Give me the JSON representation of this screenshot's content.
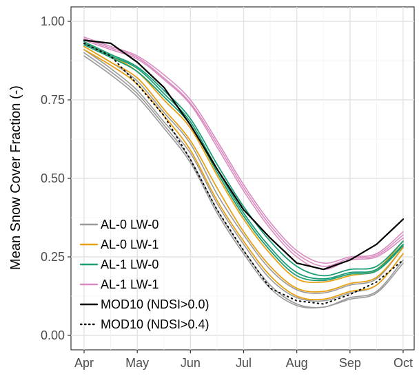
{
  "chart_data": {
    "type": "line",
    "title": "",
    "xlabel": "",
    "ylabel": "Mean Snow Cover Fraction (-)",
    "x_ticks": [
      "Apr",
      "May",
      "Jun",
      "Jul",
      "Aug",
      "Sep",
      "Oct"
    ],
    "y_ticks": [
      "0.00",
      "0.25",
      "0.50",
      "0.75",
      "1.00"
    ],
    "xlim": [
      "Apr",
      "Oct"
    ],
    "ylim": [
      0,
      1.0
    ],
    "grid": true,
    "legend_position": "bottom-left",
    "legend": [
      {
        "label": "AL-0 LW-0",
        "color": "#9a9a9a",
        "dash": "solid"
      },
      {
        "label": "AL-0 LW-1",
        "color": "#e6a117",
        "dash": "solid"
      },
      {
        "label": "AL-1 LW-0",
        "color": "#1b9e77",
        "dash": "solid"
      },
      {
        "label": "AL-1 LW-1",
        "color": "#d98cc0",
        "dash": "solid"
      },
      {
        "label": "MOD10 (NDSI>0.0)",
        "color": "#000000",
        "dash": "solid"
      },
      {
        "label": "MOD10 (NDSI>0.4)",
        "color": "#000000",
        "dash": "dotted"
      }
    ],
    "x": [
      "Apr",
      "Apr 15",
      "May",
      "May 15",
      "Jun",
      "Jun 15",
      "Jul",
      "Jul 15",
      "Aug",
      "Aug 15",
      "Sep",
      "Sep 15",
      "Oct"
    ],
    "series": [
      {
        "name": "AL-0 LW-0",
        "color": "#9a9a9a",
        "dash": "solid",
        "width": 1.6,
        "values": [
          0.9,
          0.84,
          0.77,
          0.67,
          0.56,
          0.4,
          0.27,
          0.16,
          0.1,
          0.09,
          0.12,
          0.14,
          0.24
        ]
      },
      {
        "name": "AL-0 LW-0",
        "color": "#9a9a9a",
        "dash": "solid",
        "width": 1.6,
        "values": [
          0.89,
          0.83,
          0.76,
          0.66,
          0.55,
          0.39,
          0.26,
          0.15,
          0.095,
          0.09,
          0.115,
          0.135,
          0.23
        ]
      },
      {
        "name": "AL-0 LW-0",
        "color": "#9a9a9a",
        "dash": "solid",
        "width": 1.6,
        "values": [
          0.91,
          0.85,
          0.78,
          0.68,
          0.58,
          0.42,
          0.29,
          0.18,
          0.12,
          0.11,
          0.135,
          0.16,
          0.26
        ]
      },
      {
        "name": "AL-0 LW-0",
        "color": "#9a9a9a",
        "dash": "solid",
        "width": 1.6,
        "values": [
          0.92,
          0.87,
          0.81,
          0.71,
          0.61,
          0.45,
          0.32,
          0.21,
          0.145,
          0.135,
          0.16,
          0.18,
          0.28
        ]
      },
      {
        "name": "AL-0 LW-1",
        "color": "#e6a117",
        "dash": "solid",
        "width": 1.8,
        "values": [
          0.91,
          0.86,
          0.8,
          0.7,
          0.59,
          0.43,
          0.3,
          0.19,
          0.125,
          0.115,
          0.14,
          0.16,
          0.26
        ]
      },
      {
        "name": "AL-0 LW-1",
        "color": "#e6a117",
        "dash": "solid",
        "width": 1.8,
        "values": [
          0.92,
          0.87,
          0.82,
          0.72,
          0.62,
          0.47,
          0.33,
          0.22,
          0.15,
          0.14,
          0.165,
          0.185,
          0.28
        ]
      },
      {
        "name": "AL-0 LW-1",
        "color": "#e6a117",
        "dash": "solid",
        "width": 1.8,
        "values": [
          0.93,
          0.89,
          0.84,
          0.75,
          0.66,
          0.51,
          0.37,
          0.26,
          0.18,
          0.17,
          0.19,
          0.21,
          0.3
        ]
      },
      {
        "name": "AL-1 LW-0",
        "color": "#1b9e77",
        "dash": "solid",
        "width": 1.8,
        "values": [
          0.93,
          0.89,
          0.85,
          0.77,
          0.68,
          0.53,
          0.39,
          0.28,
          0.2,
          0.18,
          0.2,
          0.21,
          0.29
        ]
      },
      {
        "name": "AL-1 LW-0",
        "color": "#1b9e77",
        "dash": "solid",
        "width": 1.8,
        "values": [
          0.925,
          0.885,
          0.84,
          0.76,
          0.67,
          0.52,
          0.38,
          0.27,
          0.19,
          0.175,
          0.195,
          0.205,
          0.285
        ]
      },
      {
        "name": "AL-1 LW-0",
        "color": "#1b9e77",
        "dash": "solid",
        "width": 1.8,
        "values": [
          0.935,
          0.895,
          0.855,
          0.78,
          0.69,
          0.545,
          0.41,
          0.3,
          0.22,
          0.19,
          0.21,
          0.22,
          0.3
        ]
      },
      {
        "name": "AL-1 LW-1",
        "color": "#d98cc0",
        "dash": "solid",
        "width": 1.6,
        "values": [
          0.95,
          0.92,
          0.89,
          0.83,
          0.75,
          0.62,
          0.48,
          0.36,
          0.27,
          0.23,
          0.25,
          0.26,
          0.33
        ]
      },
      {
        "name": "AL-1 LW-1",
        "color": "#d98cc0",
        "dash": "solid",
        "width": 1.6,
        "values": [
          0.945,
          0.915,
          0.885,
          0.82,
          0.74,
          0.61,
          0.47,
          0.35,
          0.26,
          0.22,
          0.245,
          0.255,
          0.32
        ]
      },
      {
        "name": "AL-1 LW-1",
        "color": "#d98cc0",
        "dash": "solid",
        "width": 1.6,
        "values": [
          0.94,
          0.91,
          0.88,
          0.815,
          0.735,
          0.6,
          0.46,
          0.34,
          0.25,
          0.21,
          0.24,
          0.25,
          0.31
        ]
      },
      {
        "name": "MOD10 (NDSI>0.0)",
        "color": "#000000",
        "dash": "solid",
        "width": 2.2,
        "values": [
          0.94,
          0.93,
          0.87,
          0.79,
          0.67,
          0.53,
          0.4,
          0.31,
          0.23,
          0.21,
          0.24,
          0.29,
          0.37
        ]
      },
      {
        "name": "MOD10 (NDSI>0.4)",
        "color": "#000000",
        "dash": "dotted",
        "width": 2.0,
        "values": [
          0.93,
          0.89,
          0.8,
          0.7,
          0.56,
          0.4,
          0.27,
          0.15,
          0.11,
          0.1,
          0.13,
          0.17,
          0.24
        ]
      }
    ]
  }
}
